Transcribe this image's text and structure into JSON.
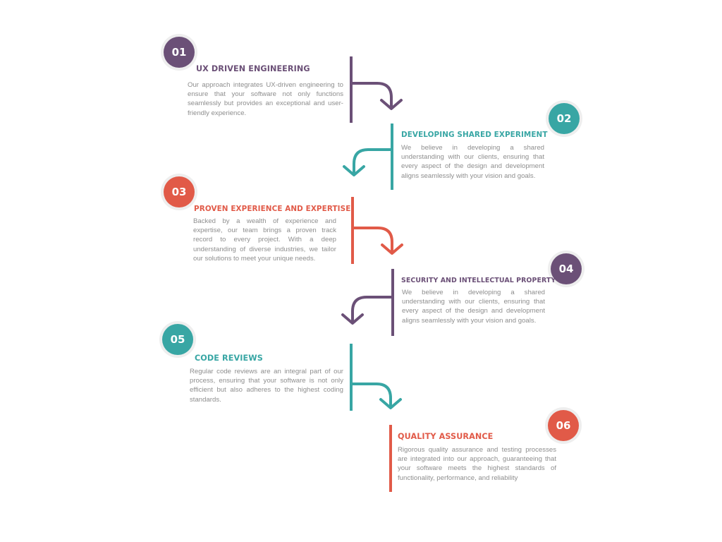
{
  "colors": {
    "purple": "#6b5077",
    "teal": "#38a6a4",
    "red": "#e15a48",
    "text": "#8e8e8e"
  },
  "steps": [
    {
      "number": "01",
      "title": "UX DRIVEN ENGINEERING",
      "color": "purple",
      "description": "Our approach integrates UX-driven engineering to ensure that your software not only functions seamlessly but provides an exceptional and user-friendly experience."
    },
    {
      "number": "02",
      "title": "DEVELOPING SHARED EXPERIMENT",
      "color": "teal",
      "description": "We believe in developing a shared understanding with our clients, ensuring that every aspect of the design and development aligns seamlessly with your vision and goals."
    },
    {
      "number": "03",
      "title": "PROVEN EXPERIENCE AND EXPERTISE",
      "color": "red",
      "description": "Backed by a wealth of experience and expertise, our team brings a proven track record to every project. With a deep understanding of diverse industries, we tailor our solutions to meet your unique needs."
    },
    {
      "number": "04",
      "title": "SECURITY AND INTELLECTUAL PROPERTY",
      "color": "purple",
      "description": "We believe in developing a shared understanding with our clients, ensuring that every aspect of the design and development aligns seamlessly with your vision and goals."
    },
    {
      "number": "05",
      "title": "CODE REVIEWS",
      "color": "teal",
      "description": "Regular code reviews are an integral part of our process, ensuring that your software is not only efficient but also adheres to the highest coding standards."
    },
    {
      "number": "06",
      "title": "QUALITY ASSURANCE",
      "color": "red",
      "description": "Rigorous quality assurance and testing processes are integrated into our approach, guaranteeing that your software meets the highest standards of functionality, performance, and reliability"
    }
  ]
}
